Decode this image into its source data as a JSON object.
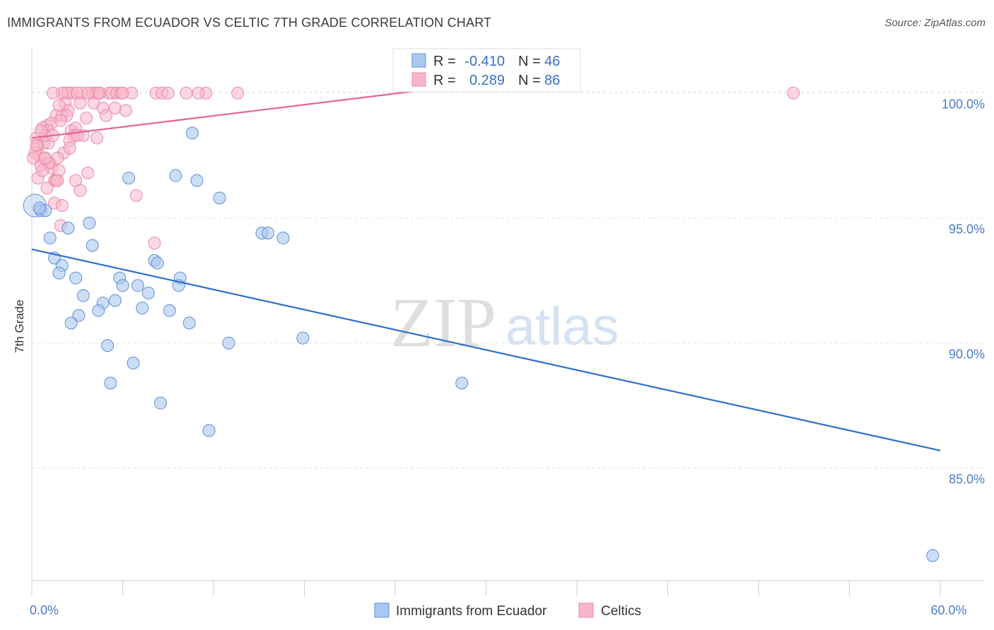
{
  "header": {
    "title": "IMMIGRANTS FROM ECUADOR VS CELTIC 7TH GRADE CORRELATION CHART",
    "source": "Source: ZipAtlas.com"
  },
  "watermark": {
    "zip": "ZIP",
    "atlas": "atlas"
  },
  "colors": {
    "ecuador_fill": "#aac8ef",
    "ecuador_stroke": "#5e8fd6",
    "ecuador_line": "#2f6fcd",
    "celtics_fill": "#f7b6c9",
    "celtics_stroke": "#e98aa8",
    "celtics_line": "#e4648f",
    "grid": "#e6e6e6",
    "tick_text": "#4a7cc9"
  },
  "stats": [
    {
      "r_label": "R =",
      "r_value": "-0.410",
      "n_label": "N =",
      "n_value": "46"
    },
    {
      "r_label": "R =",
      "r_value": "0.289",
      "n_label": "N =",
      "n_value": "86"
    }
  ],
  "chart_data": {
    "type": "scatter",
    "title": "IMMIGRANTS FROM ECUADOR VS CELTIC 7TH GRADE CORRELATION CHART",
    "xlabel": "",
    "ylabel": "7th Grade",
    "xlim": [
      0,
      60
    ],
    "ylim": [
      80.5,
      101.8
    ],
    "x_tick_labels": [
      {
        "value": 0,
        "label": "0.0%"
      },
      {
        "value": 60,
        "label": "60.0%"
      }
    ],
    "y_tick_labels": [
      {
        "value": 100,
        "label": "100.0%"
      },
      {
        "value": 95,
        "label": "95.0%"
      },
      {
        "value": 90,
        "label": "90.0%"
      },
      {
        "value": 85,
        "label": "85.0%"
      }
    ],
    "grid": true,
    "legend_position": "bottom-center",
    "series": [
      {
        "name": "Immigrants from Ecuador",
        "trend": {
          "x": [
            0,
            60
          ],
          "y": [
            93.75,
            85.7
          ]
        },
        "points": [
          [
            0.2,
            95.5
          ],
          [
            0.6,
            95.3
          ],
          [
            0.9,
            95.3
          ],
          [
            1.2,
            94.2
          ],
          [
            2.4,
            94.6
          ],
          [
            3.8,
            94.8
          ],
          [
            1.5,
            93.4
          ],
          [
            2.0,
            93.1
          ],
          [
            4.0,
            93.9
          ],
          [
            8.1,
            93.3
          ],
          [
            8.3,
            93.2
          ],
          [
            1.8,
            92.8
          ],
          [
            2.9,
            92.6
          ],
          [
            5.8,
            92.6
          ],
          [
            6.0,
            92.3
          ],
          [
            7.0,
            92.3
          ],
          [
            9.8,
            92.6
          ],
          [
            9.7,
            92.3
          ],
          [
            3.4,
            91.9
          ],
          [
            4.7,
            91.6
          ],
          [
            5.5,
            91.7
          ],
          [
            7.7,
            92.0
          ],
          [
            4.4,
            91.3
          ],
          [
            7.3,
            91.4
          ],
          [
            3.1,
            91.1
          ],
          [
            9.1,
            91.3
          ],
          [
            2.6,
            90.8
          ],
          [
            10.4,
            90.8
          ],
          [
            5.0,
            89.9
          ],
          [
            13.0,
            90.0
          ],
          [
            17.9,
            90.2
          ],
          [
            6.7,
            89.2
          ],
          [
            5.2,
            88.4
          ],
          [
            28.4,
            88.4
          ],
          [
            8.5,
            87.6
          ],
          [
            11.7,
            86.5
          ],
          [
            10.6,
            98.4
          ],
          [
            6.4,
            96.6
          ],
          [
            9.5,
            96.7
          ],
          [
            10.9,
            96.5
          ],
          [
            12.4,
            95.8
          ],
          [
            15.2,
            94.4
          ],
          [
            15.6,
            94.4
          ],
          [
            16.6,
            94.2
          ],
          [
            0.5,
            95.4
          ],
          [
            59.5,
            81.5
          ]
        ]
      },
      {
        "name": "Celtics",
        "trend": {
          "x": [
            0,
            27
          ],
          "y": [
            98.2,
            100.2
          ]
        },
        "points": [
          [
            2.7,
            100.0
          ],
          [
            2.2,
            100.0
          ],
          [
            2.4,
            100.0
          ],
          [
            2.0,
            100.0
          ],
          [
            3.3,
            100.0
          ],
          [
            3.0,
            100.0
          ],
          [
            4.0,
            100.0
          ],
          [
            4.2,
            100.0
          ],
          [
            4.5,
            100.0
          ],
          [
            5.1,
            100.0
          ],
          [
            5.3,
            100.0
          ],
          [
            5.6,
            100.0
          ],
          [
            6.6,
            100.0
          ],
          [
            8.2,
            100.0
          ],
          [
            8.6,
            100.0
          ],
          [
            9.0,
            100.0
          ],
          [
            10.2,
            100.0
          ],
          [
            11.5,
            100.0
          ],
          [
            13.6,
            100.0
          ],
          [
            1.4,
            100.0
          ],
          [
            50.3,
            100.0
          ],
          [
            2.2,
            99.6
          ],
          [
            3.2,
            99.6
          ],
          [
            4.1,
            99.6
          ],
          [
            2.4,
            99.3
          ],
          [
            4.7,
            99.4
          ],
          [
            5.5,
            99.4
          ],
          [
            1.6,
            99.1
          ],
          [
            2.0,
            99.1
          ],
          [
            2.3,
            99.1
          ],
          [
            4.9,
            99.1
          ],
          [
            1.0,
            98.7
          ],
          [
            1.3,
            98.8
          ],
          [
            1.9,
            98.9
          ],
          [
            0.7,
            98.6
          ],
          [
            1.1,
            98.5
          ],
          [
            2.6,
            98.5
          ],
          [
            2.9,
            98.6
          ],
          [
            2.8,
            98.3
          ],
          [
            3.4,
            98.3
          ],
          [
            4.3,
            98.2
          ],
          [
            0.3,
            98.2
          ],
          [
            0.4,
            97.9
          ],
          [
            0.8,
            98.0
          ],
          [
            1.1,
            98.0
          ],
          [
            2.5,
            98.1
          ],
          [
            0.9,
            98.3
          ],
          [
            0.2,
            97.6
          ],
          [
            0.5,
            97.5
          ],
          [
            0.8,
            97.4
          ],
          [
            2.1,
            97.6
          ],
          [
            2.5,
            97.8
          ],
          [
            0.1,
            97.4
          ],
          [
            0.6,
            97.1
          ],
          [
            1.2,
            97.2
          ],
          [
            1.7,
            97.4
          ],
          [
            1.3,
            97.0
          ],
          [
            1.1,
            97.2
          ],
          [
            0.4,
            96.6
          ],
          [
            0.7,
            96.9
          ],
          [
            1.5,
            96.5
          ],
          [
            1.8,
            96.9
          ],
          [
            2.9,
            96.5
          ],
          [
            3.7,
            96.8
          ],
          [
            1.6,
            96.5
          ],
          [
            1.0,
            96.2
          ],
          [
            1.7,
            96.5
          ],
          [
            3.2,
            96.1
          ],
          [
            6.9,
            95.9
          ],
          [
            1.5,
            95.6
          ],
          [
            2.0,
            95.5
          ],
          [
            1.9,
            94.7
          ],
          [
            8.1,
            94.0
          ],
          [
            0.6,
            98.5
          ],
          [
            1.4,
            98.3
          ],
          [
            3.6,
            99.0
          ],
          [
            6.2,
            99.3
          ],
          [
            4.4,
            100.0
          ],
          [
            5.9,
            100.0
          ],
          [
            0.9,
            97.4
          ],
          [
            1.8,
            99.5
          ],
          [
            3.0,
            98.3
          ],
          [
            0.3,
            97.9
          ],
          [
            6.0,
            100.0
          ],
          [
            11.0,
            100.0
          ],
          [
            3.7,
            100.0
          ]
        ]
      }
    ]
  },
  "legend": {
    "items": [
      {
        "label": "Immigrants from Ecuador"
      },
      {
        "label": "Celtics"
      }
    ]
  }
}
